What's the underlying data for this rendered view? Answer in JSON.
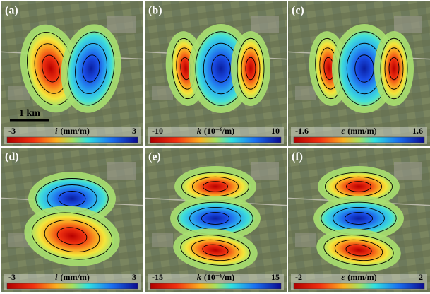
{
  "scale_bar": "1 km",
  "panels": [
    {
      "label": "(a)",
      "colorbar": {
        "min": "-3",
        "symbol": "i",
        "unit": "(mm/m)",
        "max": "3"
      }
    },
    {
      "label": "(b)",
      "colorbar": {
        "min": "-10",
        "symbol": "k",
        "unit": "(10⁻⁶/m)",
        "max": "10"
      }
    },
    {
      "label": "(c)",
      "colorbar": {
        "min": "-1.6",
        "symbol": "ε",
        "unit": "(mm/m)",
        "max": "1.6"
      }
    },
    {
      "label": "(d)",
      "colorbar": {
        "min": "-3",
        "symbol": "i",
        "unit": "(mm/m)",
        "max": "3"
      }
    },
    {
      "label": "(e)",
      "colorbar": {
        "min": "-15",
        "symbol": "k",
        "unit": "(10⁻⁶/m)",
        "max": "15"
      }
    },
    {
      "label": "(f)",
      "colorbar": {
        "min": "-2",
        "symbol": "ε",
        "unit": "(mm/m)",
        "max": "2"
      }
    }
  ]
}
